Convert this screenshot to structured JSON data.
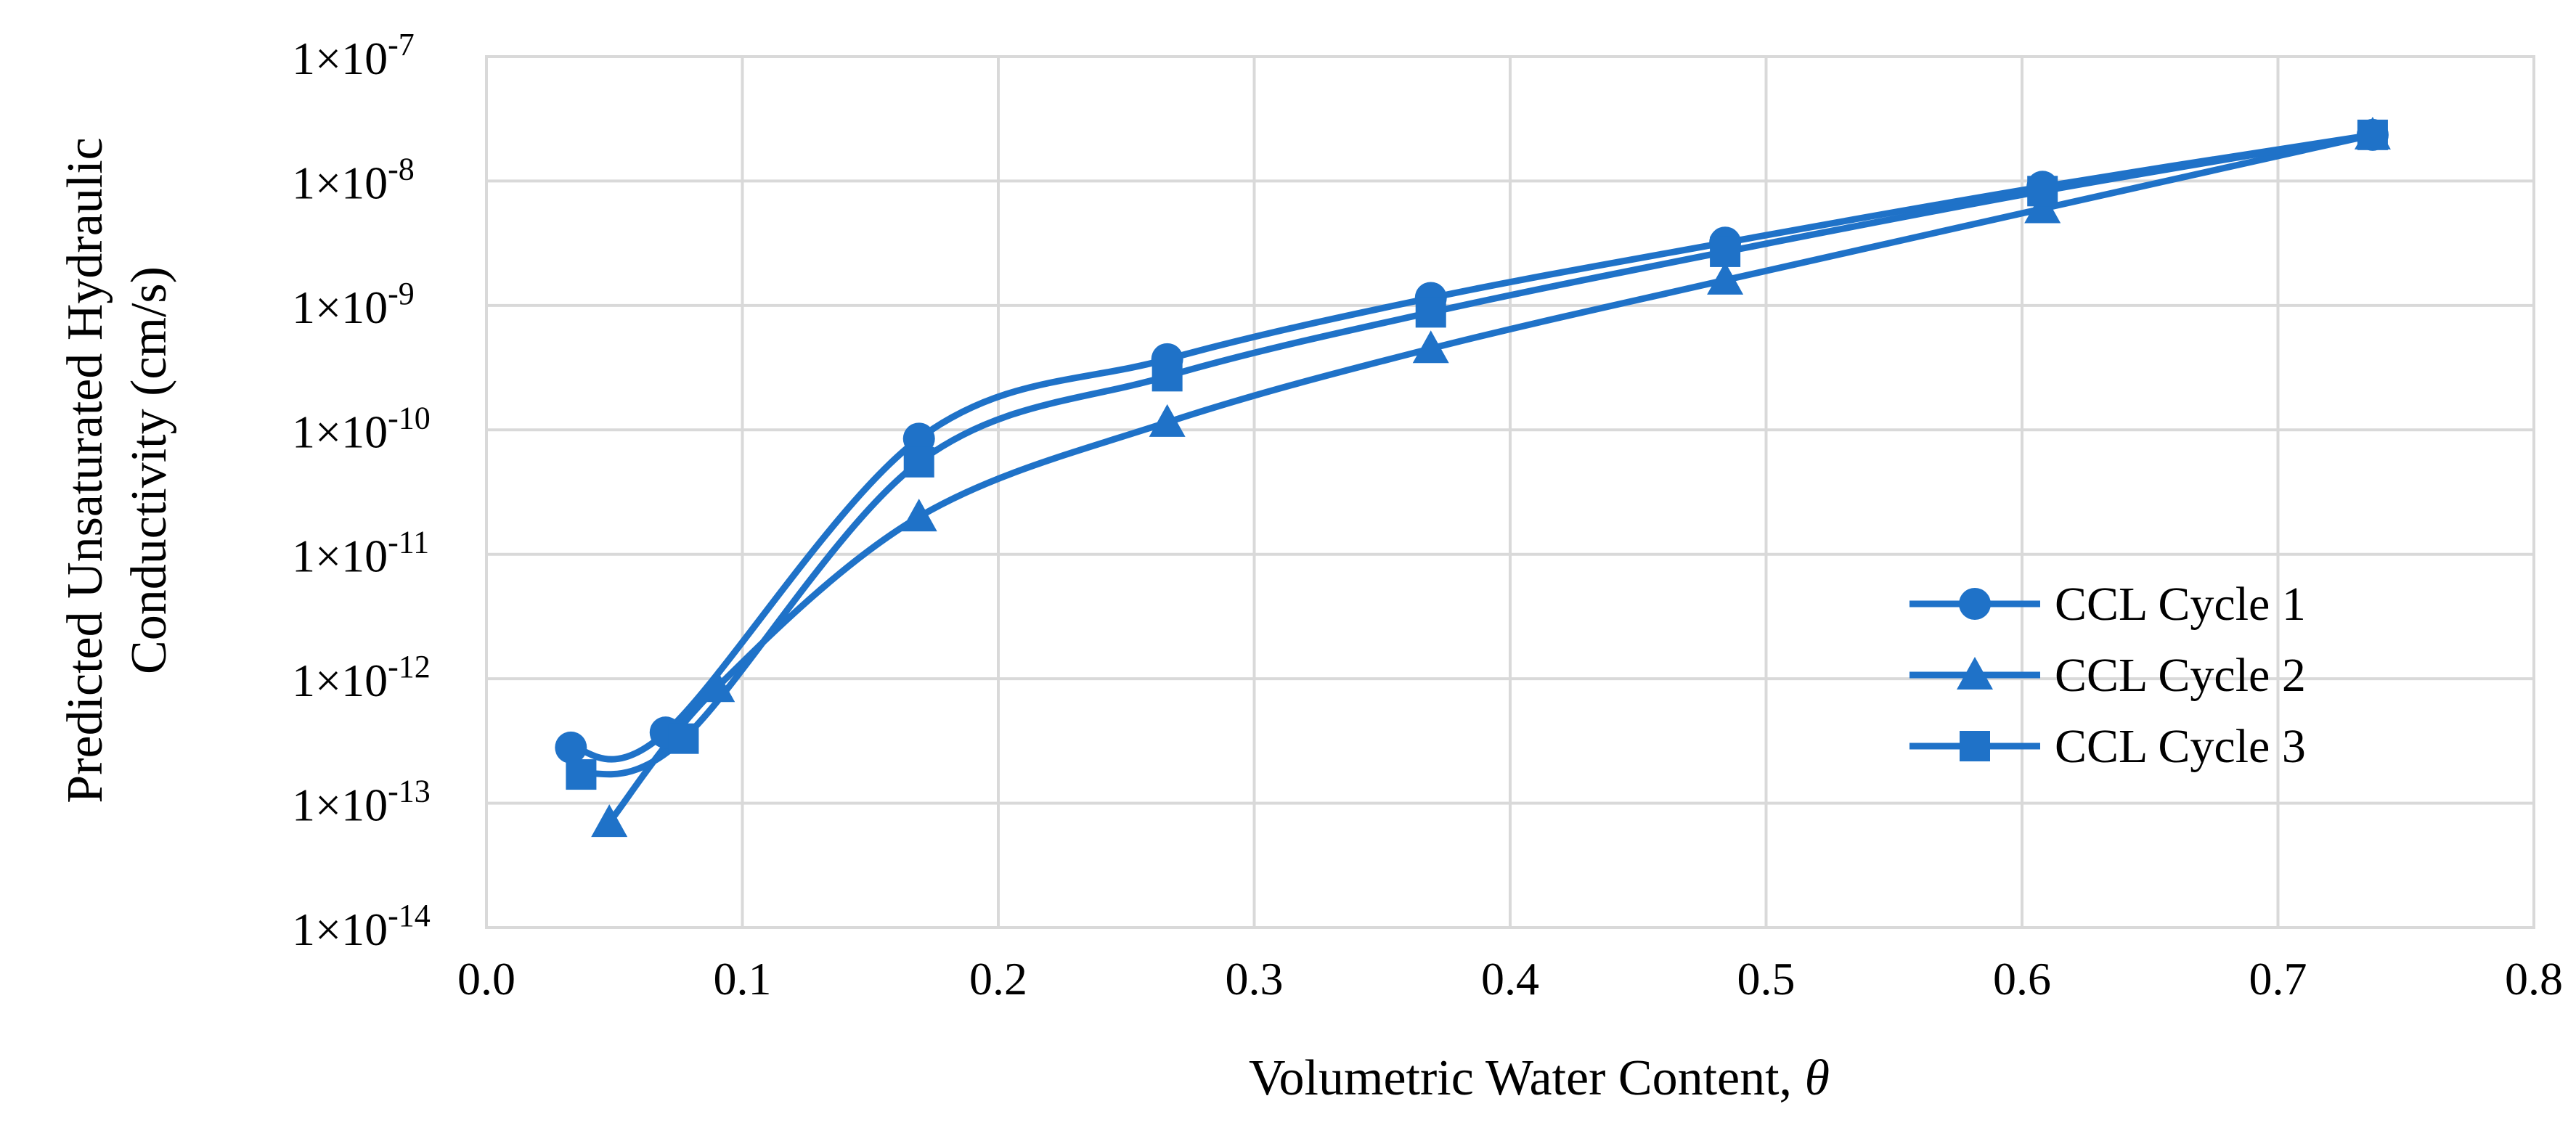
{
  "chart_data": {
    "type": "line",
    "title": "",
    "xlabel": "Volumetric Water Content, ",
    "xlabel_symbol": "θ",
    "ylabel_lines": [
      "Predicted Unsaturated Hydraulic",
      "Conductivity (cm/s)"
    ],
    "xlim": [
      0,
      0.8
    ],
    "ylim_log10": [
      -14,
      -7
    ],
    "y_scale": "log",
    "grid": true,
    "legend_position": "right",
    "x_tick_labels": [
      "0.0",
      "0.1",
      "0.2",
      "0.3",
      "0.4",
      "0.5",
      "0.6",
      "0.7",
      "0.8"
    ],
    "y_tick_labels": [
      {
        "base": "1×10",
        "exp": "-7"
      },
      {
        "base": "1×10",
        "exp": "-8"
      },
      {
        "base": "1×10",
        "exp": "-9"
      },
      {
        "base": "1×10",
        "exp": "-10"
      },
      {
        "base": "1×10",
        "exp": "-11"
      },
      {
        "base": "1×10",
        "exp": "-12"
      },
      {
        "base": "1×10",
        "exp": "-13"
      },
      {
        "base": "1×10",
        "exp": "-14"
      }
    ],
    "series": [
      {
        "name": "CCL Cycle 1",
        "marker": "circle",
        "color": "#1F72C8",
        "points": [
          {
            "x": 0.033,
            "y": 2.8e-13
          },
          {
            "x": 0.07,
            "y": 3.7e-13
          },
          {
            "x": 0.169,
            "y": 8.5e-11
          },
          {
            "x": 0.266,
            "y": 3.7e-10
          },
          {
            "x": 0.369,
            "y": 1.15e-09
          },
          {
            "x": 0.484,
            "y": 3.2e-09
          },
          {
            "x": 0.608,
            "y": 9e-09
          },
          {
            "x": 0.737,
            "y": 2.35e-08
          }
        ]
      },
      {
        "name": "CCL Cycle 2",
        "marker": "triangle",
        "color": "#1F72C8",
        "points": [
          {
            "x": 0.048,
            "y": 7e-14
          },
          {
            "x": 0.09,
            "y": 8.5e-13
          },
          {
            "x": 0.169,
            "y": 2e-11
          },
          {
            "x": 0.266,
            "y": 1.15e-10
          },
          {
            "x": 0.369,
            "y": 4.5e-10
          },
          {
            "x": 0.484,
            "y": 1.6e-09
          },
          {
            "x": 0.608,
            "y": 6e-09
          },
          {
            "x": 0.737,
            "y": 2.35e-08
          }
        ]
      },
      {
        "name": "CCL Cycle 3",
        "marker": "square",
        "color": "#1F72C8",
        "points": [
          {
            "x": 0.037,
            "y": 1.7e-13
          },
          {
            "x": 0.077,
            "y": 3.3e-13
          },
          {
            "x": 0.169,
            "y": 5.5e-11
          },
          {
            "x": 0.266,
            "y": 2.7e-10
          },
          {
            "x": 0.369,
            "y": 8.8e-10
          },
          {
            "x": 0.484,
            "y": 2.7e-09
          },
          {
            "x": 0.608,
            "y": 8.3e-09
          },
          {
            "x": 0.737,
            "y": 2.35e-08
          }
        ]
      }
    ]
  }
}
